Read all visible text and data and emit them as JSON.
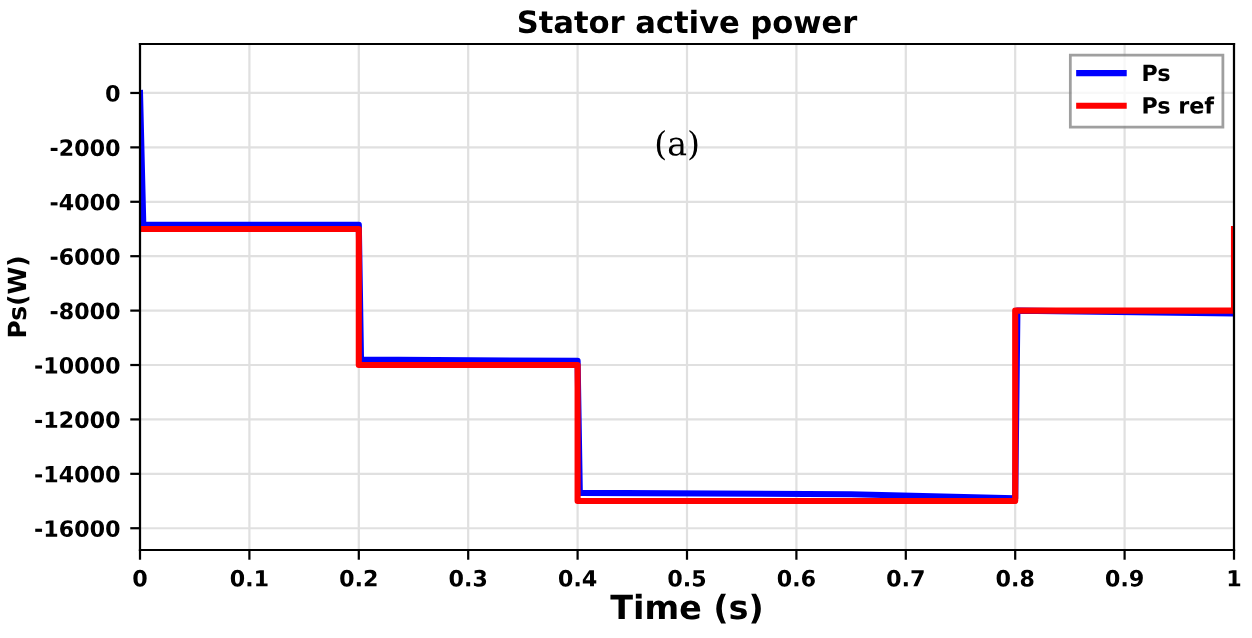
{
  "chart_data": {
    "type": "line",
    "title": "Stator active power",
    "xlabel": "Time (s)",
    "ylabel": "Ps(W)",
    "series": [
      {
        "name": "Ps",
        "color": "#0000ff",
        "x": [
          0,
          0.003,
          0.2,
          0.202,
          0.4,
          0.402,
          0.65,
          0.8,
          0.802,
          1
        ],
        "values": [
          0,
          -4850,
          -4850,
          -9800,
          -9850,
          -14700,
          -14750,
          -14900,
          -8000,
          -8100
        ]
      },
      {
        "name": "Ps ref",
        "color": "#ff0000",
        "x": [
          0,
          0.2,
          0.2,
          0.4,
          0.4,
          0.8,
          0.8,
          1,
          1
        ],
        "values": [
          -5000,
          -5000,
          -10000,
          -10000,
          -15000,
          -15000,
          -8000,
          -8000,
          -5000
        ]
      }
    ],
    "xlim": [
      0,
      1
    ],
    "xticks": [
      0,
      0.1,
      0.2,
      0.3,
      0.4,
      0.5,
      0.6,
      0.7,
      0.8,
      0.9,
      1
    ],
    "ylim": [
      -16800,
      1800
    ],
    "yticks": [
      -16000,
      -14000,
      -12000,
      -10000,
      -8000,
      -6000,
      -4000,
      -2000,
      0
    ],
    "grid": true,
    "legend": "top right",
    "line_style": "solid",
    "marker": "none",
    "annotations": [
      "(a)"
    ]
  }
}
